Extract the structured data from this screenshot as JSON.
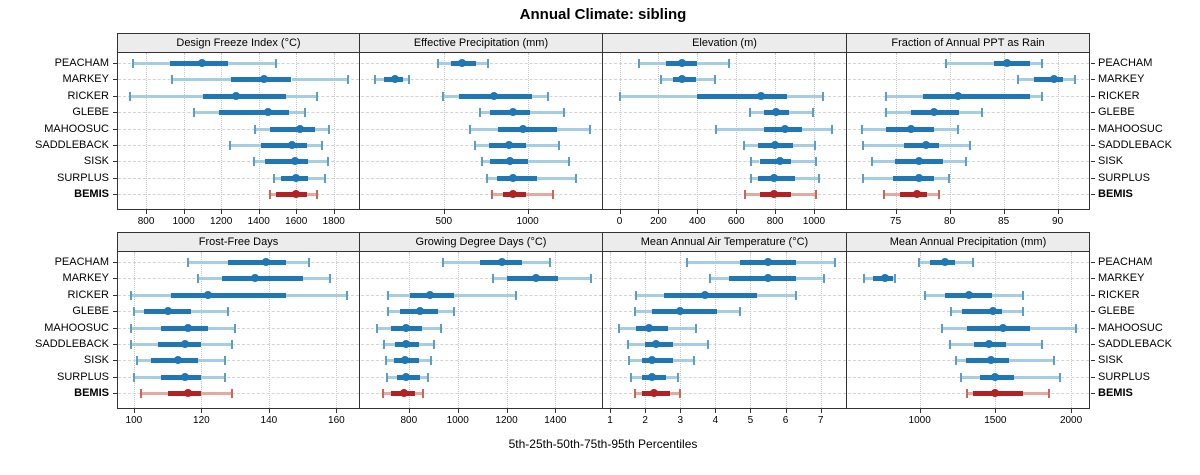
{
  "title": "Annual Climate: sibling",
  "xlabel": "5th-25th-50th-75th-95th Percentiles",
  "sites": [
    "PEACHAM",
    "MARKEY",
    "RICKER",
    "GLEBE",
    "MAHOOSUC",
    "SADDLEBACK",
    "SISK",
    "SURPLUS",
    "BEMIS"
  ],
  "highlight_site": "BEMIS",
  "colors": {
    "blue_dark": "#1f77b4",
    "blue_light": "#a6cee3",
    "blue_cap": "#5b9ec9",
    "red_dark": "#b22222",
    "red_light": "#e8a8a2",
    "red_cap": "#cc6659",
    "grid": "#d4d4d4",
    "border": "#333333",
    "header_bg": "#ececec"
  },
  "chart_data": [
    {
      "type": "dotplot-percentiles",
      "title": "Design Freeze Index (°C)",
      "row": "top",
      "xlim": [
        645,
        1940
      ],
      "ticks": [
        800,
        1000,
        1200,
        1400,
        1600,
        1800
      ],
      "percentiles": [
        "5th",
        "25th",
        "50th",
        "75th",
        "95th"
      ],
      "series": [
        {
          "name": "PEACHAM",
          "values": [
            730,
            930,
            1100,
            1235,
            1490
          ]
        },
        {
          "name": "MARKEY",
          "values": [
            940,
            1255,
            1430,
            1575,
            1875
          ]
        },
        {
          "name": "RICKER",
          "values": [
            715,
            1105,
            1280,
            1545,
            1710
          ]
        },
        {
          "name": "GLEBE",
          "values": [
            1055,
            1190,
            1450,
            1560,
            1645
          ]
        },
        {
          "name": "MAHOOSUC",
          "values": [
            1380,
            1460,
            1620,
            1700,
            1775
          ]
        },
        {
          "name": "SADDLEBACK",
          "values": [
            1245,
            1410,
            1580,
            1655,
            1740
          ]
        },
        {
          "name": "SISK",
          "values": [
            1375,
            1435,
            1595,
            1665,
            1770
          ]
        },
        {
          "name": "SURPLUS",
          "values": [
            1480,
            1520,
            1600,
            1665,
            1755
          ]
        },
        {
          "name": "BEMIS",
          "values": [
            1460,
            1495,
            1600,
            1660,
            1710
          ]
        }
      ]
    },
    {
      "type": "dotplot-percentiles",
      "title": "Effective Precipitation (mm)",
      "row": "top",
      "xlim": [
        0,
        1450
      ],
      "ticks": [
        500,
        1000
      ],
      "percentiles": [
        "5th",
        "25th",
        "50th",
        "75th",
        "95th"
      ],
      "series": [
        {
          "name": "PEACHAM",
          "values": [
            465,
            545,
            610,
            690,
            765
          ]
        },
        {
          "name": "MARKEY",
          "values": [
            90,
            145,
            210,
            255,
            290
          ]
        },
        {
          "name": "RICKER",
          "values": [
            495,
            590,
            800,
            1025,
            1120
          ]
        },
        {
          "name": "GLEBE",
          "values": [
            715,
            775,
            910,
            1015,
            1215
          ]
        },
        {
          "name": "MAHOOSUC",
          "values": [
            655,
            825,
            970,
            1175,
            1375
          ]
        },
        {
          "name": "SADDLEBACK",
          "values": [
            685,
            770,
            890,
            990,
            1190
          ]
        },
        {
          "name": "SISK",
          "values": [
            730,
            775,
            895,
            1005,
            1250
          ]
        },
        {
          "name": "SURPLUS",
          "values": [
            760,
            815,
            910,
            1055,
            1290
          ]
        },
        {
          "name": "BEMIS",
          "values": [
            785,
            855,
            910,
            990,
            1150
          ]
        }
      ]
    },
    {
      "type": "dotplot-percentiles",
      "title": "Elevation (m)",
      "row": "top",
      "xlim": [
        -85,
        1170
      ],
      "ticks": [
        0,
        200,
        400,
        600,
        800,
        1000
      ],
      "percentiles": [
        "5th",
        "25th",
        "50th",
        "75th",
        "95th"
      ],
      "series": [
        {
          "name": "PEACHAM",
          "values": [
            100,
            240,
            320,
            400,
            565
          ]
        },
        {
          "name": "MARKEY",
          "values": [
            215,
            275,
            320,
            395,
            490
          ]
        },
        {
          "name": "RICKER",
          "values": [
            5,
            400,
            730,
            860,
            1045
          ]
        },
        {
          "name": "GLEBE",
          "values": [
            670,
            745,
            805,
            870,
            995
          ]
        },
        {
          "name": "MAHOOSUC",
          "values": [
            495,
            745,
            850,
            940,
            1095
          ]
        },
        {
          "name": "SADDLEBACK",
          "values": [
            640,
            710,
            800,
            890,
            1005
          ]
        },
        {
          "name": "SISK",
          "values": [
            675,
            720,
            825,
            880,
            1010
          ]
        },
        {
          "name": "SURPLUS",
          "values": [
            675,
            710,
            795,
            905,
            1025
          ]
        },
        {
          "name": "BEMIS",
          "values": [
            645,
            720,
            795,
            880,
            1010
          ]
        }
      ]
    },
    {
      "type": "dotplot-percentiles",
      "title": "Fraction of Annual PPT as Rain",
      "row": "top",
      "xlim": [
        70.5,
        93
      ],
      "ticks": [
        75,
        80,
        85,
        90
      ],
      "percentiles": [
        "5th",
        "25th",
        "50th",
        "75th",
        "95th"
      ],
      "series": [
        {
          "name": "PEACHAM",
          "values": [
            79.7,
            84.1,
            85.3,
            87.4,
            88.6
          ]
        },
        {
          "name": "MARKEY",
          "values": [
            86.3,
            87.8,
            89.7,
            90.5,
            91.6
          ]
        },
        {
          "name": "RICKER",
          "values": [
            74.1,
            77.5,
            80.8,
            87.4,
            88.6
          ]
        },
        {
          "name": "GLEBE",
          "values": [
            74.1,
            76.4,
            78.6,
            80.9,
            83.0
          ]
        },
        {
          "name": "MAHOOSUC",
          "values": [
            71.9,
            74.1,
            76.4,
            78.6,
            80.8
          ]
        },
        {
          "name": "SADDLEBACK",
          "values": [
            72.0,
            75.8,
            77.8,
            79.0,
            81.9
          ]
        },
        {
          "name": "SISK",
          "values": [
            72.8,
            74.9,
            77.2,
            79.4,
            81.5
          ]
        },
        {
          "name": "SURPLUS",
          "values": [
            72.0,
            74.8,
            77.2,
            78.6,
            79.9
          ]
        },
        {
          "name": "BEMIS",
          "values": [
            73.9,
            75.4,
            77.0,
            77.9,
            79.0
          ]
        }
      ]
    },
    {
      "type": "dotplot-percentiles",
      "title": "Frost-Free Days",
      "row": "bottom",
      "xlim": [
        95,
        167
      ],
      "ticks": [
        100,
        120,
        140,
        160
      ],
      "percentiles": [
        "5th",
        "25th",
        "50th",
        "75th",
        "95th"
      ],
      "series": [
        {
          "name": "PEACHAM",
          "values": [
            116,
            128,
            139,
            145,
            152
          ]
        },
        {
          "name": "MARKEY",
          "values": [
            119,
            126,
            136,
            150,
            158
          ]
        },
        {
          "name": "RICKER",
          "values": [
            99,
            111,
            122,
            145,
            163
          ]
        },
        {
          "name": "GLEBE",
          "values": [
            100,
            103,
            110,
            117,
            128
          ]
        },
        {
          "name": "MAHOOSUC",
          "values": [
            99,
            108,
            116,
            122,
            130
          ]
        },
        {
          "name": "SADDLEBACK",
          "values": [
            99,
            107,
            115,
            120,
            129
          ]
        },
        {
          "name": "SISK",
          "values": [
            101,
            105,
            113,
            119,
            127
          ]
        },
        {
          "name": "SURPLUS",
          "values": [
            100,
            108,
            115,
            120,
            127
          ]
        },
        {
          "name": "BEMIS",
          "values": [
            102,
            110,
            116,
            120,
            129
          ]
        }
      ]
    },
    {
      "type": "dotplot-percentiles",
      "title": "Growing Degree Days (°C)",
      "row": "bottom",
      "xlim": [
        600,
        1595
      ],
      "ticks": [
        800,
        1000,
        1200,
        1400
      ],
      "percentiles": [
        "5th",
        "25th",
        "50th",
        "75th",
        "95th"
      ],
      "series": [
        {
          "name": "PEACHAM",
          "values": [
            940,
            1090,
            1180,
            1265,
            1380
          ]
        },
        {
          "name": "MARKEY",
          "values": [
            1145,
            1200,
            1320,
            1410,
            1545
          ]
        },
        {
          "name": "RICKER",
          "values": [
            715,
            805,
            885,
            985,
            1240
          ]
        },
        {
          "name": "GLEBE",
          "values": [
            715,
            765,
            845,
            920,
            985
          ]
        },
        {
          "name": "MAHOOSUC",
          "values": [
            670,
            725,
            790,
            855,
            930
          ]
        },
        {
          "name": "SADDLEBACK",
          "values": [
            700,
            745,
            790,
            840,
            905
          ]
        },
        {
          "name": "SISK",
          "values": [
            705,
            740,
            785,
            840,
            890
          ]
        },
        {
          "name": "SURPLUS",
          "values": [
            710,
            750,
            790,
            845,
            880
          ]
        },
        {
          "name": "BEMIS",
          "values": [
            695,
            725,
            780,
            825,
            860
          ]
        }
      ]
    },
    {
      "type": "dotplot-percentiles",
      "title": "Mean Annual Air Temperature (°C)",
      "row": "bottom",
      "xlim": [
        0.8,
        7.75
      ],
      "ticks": [
        1,
        2,
        3,
        4,
        5,
        6,
        7
      ],
      "percentiles": [
        "5th",
        "25th",
        "50th",
        "75th",
        "95th"
      ],
      "series": [
        {
          "name": "PEACHAM",
          "values": [
            3.2,
            4.7,
            5.5,
            6.3,
            7.4
          ]
        },
        {
          "name": "MARKEY",
          "values": [
            3.85,
            4.4,
            5.5,
            6.3,
            7.1
          ]
        },
        {
          "name": "RICKER",
          "values": [
            1.75,
            2.55,
            3.7,
            5.2,
            6.3
          ]
        },
        {
          "name": "GLEBE",
          "values": [
            1.7,
            2.2,
            3.0,
            4.05,
            4.7
          ]
        },
        {
          "name": "MAHOOSUC",
          "values": [
            1.25,
            1.75,
            2.1,
            2.65,
            3.45
          ]
        },
        {
          "name": "SADDLEBACK",
          "values": [
            1.5,
            2.0,
            2.3,
            2.8,
            3.8
          ]
        },
        {
          "name": "SISK",
          "values": [
            1.55,
            1.9,
            2.2,
            2.8,
            3.4
          ]
        },
        {
          "name": "SURPLUS",
          "values": [
            1.6,
            1.9,
            2.2,
            2.6,
            2.95
          ]
        },
        {
          "name": "BEMIS",
          "values": [
            1.7,
            1.9,
            2.25,
            2.7,
            3.0
          ]
        }
      ]
    },
    {
      "type": "dotplot-percentiles",
      "title": "Mean Annual Precipitation (mm)",
      "row": "bottom",
      "xlim": [
        520,
        2125
      ],
      "ticks": [
        1000,
        1500,
        2000
      ],
      "percentiles": [
        "5th",
        "25th",
        "50th",
        "75th",
        "95th"
      ],
      "series": [
        {
          "name": "PEACHAM",
          "values": [
            995,
            1065,
            1170,
            1235,
            1355
          ]
        },
        {
          "name": "MARKEY",
          "values": [
            630,
            690,
            770,
            825,
            840
          ]
        },
        {
          "name": "RICKER",
          "values": [
            1035,
            1170,
            1325,
            1480,
            1680
          ]
        },
        {
          "name": "GLEBE",
          "values": [
            1205,
            1280,
            1485,
            1545,
            1685
          ]
        },
        {
          "name": "MAHOOSUC",
          "values": [
            1145,
            1310,
            1550,
            1730,
            2035
          ]
        },
        {
          "name": "SADDLEBACK",
          "values": [
            1200,
            1360,
            1455,
            1570,
            1810
          ]
        },
        {
          "name": "SISK",
          "values": [
            1240,
            1305,
            1470,
            1590,
            1885
          ]
        },
        {
          "name": "SURPLUS",
          "values": [
            1275,
            1400,
            1500,
            1620,
            1930
          ]
        },
        {
          "name": "BEMIS",
          "values": [
            1315,
            1350,
            1495,
            1680,
            1855
          ]
        }
      ]
    }
  ]
}
